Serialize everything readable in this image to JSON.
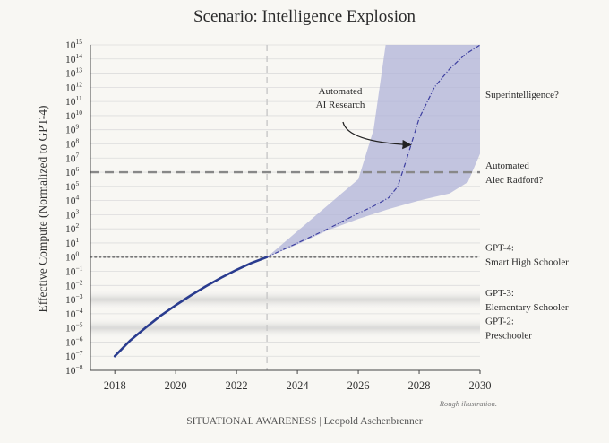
{
  "chart_data": {
    "type": "line",
    "title": "Scenario: Intelligence Explosion",
    "ylabel": "Effective Compute (Normalized to GPT-4)",
    "xlabel": "",
    "x_ticks": [
      "2018",
      "2020",
      "2022",
      "2024",
      "2026",
      "2028",
      "2030"
    ],
    "y_scale": "log10",
    "ylim_exp": [
      -8,
      15
    ],
    "y_tick_exponents": [
      -8,
      -7,
      -6,
      -5,
      -4,
      -3,
      -2,
      -1,
      0,
      1,
      2,
      3,
      4,
      5,
      6,
      7,
      8,
      9,
      10,
      11,
      12,
      13,
      14,
      15
    ],
    "y_tick_base": "10",
    "series": [
      {
        "name": "Historical effective compute",
        "style": "solid",
        "points": [
          [
            2018.0,
            -7.0
          ],
          [
            2018.5,
            -5.9
          ],
          [
            2019.0,
            -5.0
          ],
          [
            2019.5,
            -4.15
          ],
          [
            2020.0,
            -3.4
          ],
          [
            2020.5,
            -2.7
          ],
          [
            2021.0,
            -2.05
          ],
          [
            2021.5,
            -1.45
          ],
          [
            2022.0,
            -0.9
          ],
          [
            2022.5,
            -0.4
          ],
          [
            2023.0,
            0.0
          ]
        ]
      },
      {
        "name": "Projected effective compute",
        "style": "dash-dot",
        "points": [
          [
            2023.0,
            0.0
          ],
          [
            2024.0,
            1.0
          ],
          [
            2025.0,
            2.0
          ],
          [
            2026.0,
            3.1
          ],
          [
            2026.5,
            3.6
          ],
          [
            2027.0,
            4.2
          ],
          [
            2027.3,
            5.0
          ],
          [
            2027.6,
            7.0
          ],
          [
            2028.0,
            9.8
          ],
          [
            2028.5,
            12.0
          ],
          [
            2029.0,
            13.3
          ],
          [
            2029.5,
            14.3
          ],
          [
            2030.0,
            15.0
          ]
        ]
      }
    ],
    "uncertainty_band": {
      "upper": [
        [
          2023.0,
          0.0
        ],
        [
          2026.0,
          5.5
        ],
        [
          2026.5,
          9.0
        ],
        [
          2026.9,
          15.0
        ],
        [
          2030.0,
          15.0
        ]
      ],
      "lower": [
        [
          2023.0,
          0.0
        ],
        [
          2024.0,
          0.9
        ],
        [
          2025.0,
          1.9
        ],
        [
          2026.0,
          2.7
        ],
        [
          2027.0,
          3.4
        ],
        [
          2028.0,
          4.0
        ],
        [
          2029.0,
          4.5
        ],
        [
          2029.6,
          5.3
        ],
        [
          2030.0,
          7.3
        ]
      ],
      "color": "#b0b3d8"
    },
    "reference_lines": [
      {
        "name": "GPT-4 level",
        "y_exp": 0,
        "style": "dotted"
      },
      {
        "name": "Automated Alec Radford level",
        "y_exp": 6,
        "style": "dashed"
      },
      {
        "name": "2023 marker",
        "x": 2023,
        "style": "dashed-vertical"
      }
    ],
    "gray_bands": [
      {
        "name": "GPT-3 band",
        "y_exp_range": [
          -3.8,
          -2.2
        ]
      },
      {
        "name": "GPT-2 band",
        "y_exp_range": [
          -5.8,
          -4.2
        ]
      }
    ],
    "stage_labels": [
      {
        "lines": [
          "Superintelligence?"
        ],
        "y_exp": 11.5
      },
      {
        "lines": [
          "Automated",
          "Alec Radford?"
        ],
        "y_exp": 6.0
      },
      {
        "lines": [
          "GPT-4:",
          "Smart High Schooler"
        ],
        "y_exp": 0.2
      },
      {
        "lines": [
          "GPT-3:",
          "Elementary Schooler"
        ],
        "y_exp": -3.0
      },
      {
        "lines": [
          "GPT-2:",
          "Preschooler"
        ],
        "y_exp": -5.0
      }
    ],
    "annotation": {
      "lines": [
        "Automated",
        "AI Research"
      ],
      "arrow_target": [
        2027.8,
        8.0
      ]
    },
    "note": "Rough illustration.",
    "colors": {
      "historical_line": "#2a3c8f",
      "projection_line": "#3d3fa0",
      "reference_line": "#777777",
      "grid": "#dcdcdc"
    }
  },
  "footer": "SITUATIONAL AWARENESS | Leopold Aschenbrenner"
}
